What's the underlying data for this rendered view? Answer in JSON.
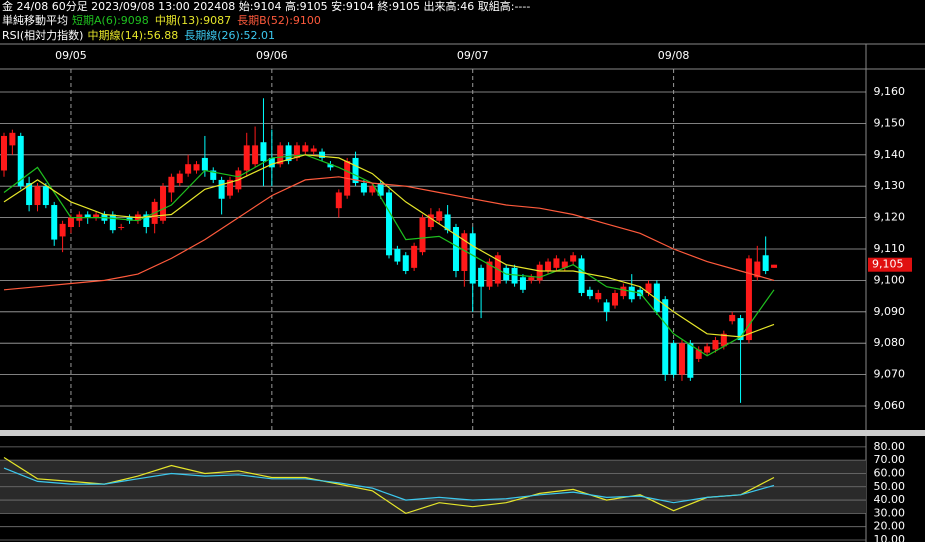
{
  "header": {
    "line1": "金 24/08 60分足 2023/09/08 13:00 202408 始:9104 高:9105 安:9104 終:9105 出来高:46 取組高:----"
  },
  "chart_data": [
    {
      "type": "candlestick",
      "title": "単純移動平均",
      "categories": [
        null,
        null,
        null,
        null,
        null,
        null,
        null,
        null,
        "09/05",
        null,
        null,
        null,
        null,
        null,
        null,
        null,
        null,
        null,
        null,
        null,
        null,
        null,
        null,
        null,
        null,
        null,
        null,
        null,
        null,
        null,
        null,
        null,
        "09/06",
        null,
        null,
        null,
        null,
        null,
        null,
        null,
        null,
        null,
        null,
        null,
        null,
        null,
        null,
        null,
        null,
        null,
        null,
        null,
        null,
        null,
        null,
        null,
        "09/07",
        null,
        null,
        null,
        null,
        null,
        null,
        null,
        null,
        null,
        null,
        null,
        null,
        null,
        null,
        null,
        null,
        null,
        null,
        null,
        null,
        null,
        null,
        null,
        "09/08",
        null,
        null,
        null,
        null,
        null,
        null,
        null,
        null,
        null,
        null,
        null,
        null
      ],
      "open": [
        9135,
        9143,
        9146,
        9131,
        9124,
        9130,
        9124,
        9114,
        9117,
        9119,
        9121,
        9120,
        9121,
        9121,
        9117,
        9120,
        9119,
        9121,
        9118,
        9119,
        9128,
        9131,
        9134,
        9135,
        9139,
        9135,
        9132,
        9127,
        9129,
        9135,
        9137,
        9144,
        9139,
        9137,
        9143,
        9139,
        9141,
        9141,
        9141,
        9137,
        9123,
        9127,
        9139,
        9131,
        9128,
        9131,
        9128,
        9110,
        9108,
        9104,
        9109,
        9117,
        9119,
        9121,
        9117,
        9103,
        9115,
        9104,
        9098,
        9099,
        9104,
        9104,
        9101,
        9100,
        9100,
        9103,
        9104,
        9104,
        9106,
        9107,
        9097,
        9094,
        9093,
        9092,
        9095,
        9098,
        9097,
        9096,
        9099,
        9094,
        9080,
        9070,
        9080,
        9075,
        9077,
        9078,
        9079,
        9087,
        9088,
        9081,
        9101,
        9108,
        9104
      ],
      "high": [
        9147,
        9148,
        9147,
        9133,
        9131,
        9131,
        9125,
        9119,
        9121,
        9122,
        9122,
        9122,
        9122,
        9122,
        9118,
        9121,
        9122,
        9122,
        9126,
        9131,
        9134,
        9135,
        9140,
        9138,
        9146,
        9136,
        9133,
        9133,
        9136,
        9147,
        9149,
        9158,
        9148,
        9144,
        9144,
        9144,
        9144,
        9143,
        9142,
        9138,
        9129,
        9139,
        9141,
        9132,
        9131,
        9132,
        9129,
        9111,
        9109,
        9112,
        9121,
        9123,
        9123,
        9124,
        9118,
        9116,
        9117,
        9105,
        9107,
        9109,
        9105,
        9105,
        9102,
        9102,
        9106,
        9107,
        9108,
        9107,
        9109,
        9108,
        9098,
        9097,
        9094,
        9097,
        9099,
        9102,
        9098,
        9100,
        9100,
        9095,
        9081,
        9081,
        9081,
        9079,
        9080,
        9082,
        9084,
        9090,
        9089,
        9108,
        9111,
        9114,
        9105
      ],
      "low": [
        9133,
        9140,
        9129,
        9122,
        9122,
        9123,
        9111,
        9109,
        9115,
        9117,
        9118,
        9119,
        9118,
        9115,
        9116,
        9118,
        9118,
        9115,
        9115,
        9118,
        9125,
        9130,
        9133,
        9134,
        9133,
        9131,
        9121,
        9126,
        9128,
        9133,
        9136,
        9130,
        9130,
        9136,
        9137,
        9138,
        9140,
        9140,
        9138,
        9135,
        9120,
        9126,
        9130,
        9127,
        9127,
        9126,
        9107,
        9105,
        9102,
        9103,
        9108,
        9116,
        9118,
        9115,
        9101,
        9098,
        9090,
        9088,
        9097,
        9098,
        9099,
        9098,
        9096,
        9099,
        9099,
        9102,
        9103,
        9103,
        9105,
        9095,
        9094,
        9093,
        9087,
        9091,
        9094,
        9093,
        9094,
        9095,
        9089,
        9068,
        9069,
        9068,
        9068,
        9074,
        9076,
        9077,
        9078,
        9086,
        9061,
        9080,
        9100,
        9102,
        9104
      ],
      "close": [
        9146,
        9147,
        9130,
        9124,
        9130,
        9124,
        9113,
        9118,
        9120,
        9121,
        9120,
        9121,
        9119,
        9116,
        9117,
        9119,
        9121,
        9117,
        9125,
        9130,
        9133,
        9134,
        9137,
        9137,
        9135,
        9132,
        9126,
        9132,
        9135,
        9143,
        9143,
        9138,
        9136,
        9143,
        9138,
        9143,
        9143,
        9142,
        9139,
        9136,
        9128,
        9138,
        9131,
        9128,
        9130,
        9127,
        9108,
        9106,
        9103,
        9111,
        9120,
        9121,
        9122,
        9116,
        9103,
        9115,
        9099,
        9098,
        9106,
        9108,
        9100,
        9099,
        9097,
        9101,
        9105,
        9106,
        9107,
        9106,
        9108,
        9096,
        9095,
        9096,
        9090,
        9096,
        9098,
        9094,
        9095,
        9099,
        9090,
        9070,
        9070,
        9080,
        9069,
        9078,
        9079,
        9081,
        9083,
        9089,
        9081,
        9107,
        9106,
        9103,
        9105
      ],
      "up_color": "#ff1a1a",
      "down_color": "#00ffff",
      "ylim": [
        9053,
        9167
      ],
      "yticks": [
        {
          "value": 9060,
          "label": "9,060"
        },
        {
          "value": 9070,
          "label": "9,070"
        },
        {
          "value": 9080,
          "label": "9,080"
        },
        {
          "value": 9090,
          "label": "9,090"
        },
        {
          "value": 9100,
          "label": "9,100"
        },
        {
          "value": 9110,
          "label": "9,110"
        },
        {
          "value": 9120,
          "label": "9,120"
        },
        {
          "value": 9130,
          "label": "9,130"
        },
        {
          "value": 9140,
          "label": "9,140"
        },
        {
          "value": 9150,
          "label": "9,150"
        },
        {
          "value": 9160,
          "label": "9,160"
        }
      ],
      "last_price": {
        "value": 9105,
        "label": "9,105"
      },
      "series": [
        {
          "name": "短期A(6):9098",
          "color": "#1fc01f",
          "x": [
            0,
            4,
            8,
            12,
            16,
            20,
            24,
            28,
            32,
            36,
            40,
            44,
            48,
            52,
            56,
            60,
            64,
            68,
            72,
            76,
            80,
            84,
            88,
            92
          ],
          "values": [
            9128,
            9136,
            9120,
            9120,
            9119,
            9124,
            9135,
            9133,
            9139,
            9140,
            9136,
            9131,
            9113,
            9114,
            9108,
            9102,
            9101,
            9105,
            9098,
            9096,
            9083,
            9076,
            9082,
            9097
          ]
        },
        {
          "name": "中期(13):9087",
          "color": "#e6e62a",
          "x": [
            0,
            4,
            8,
            12,
            16,
            20,
            24,
            28,
            32,
            36,
            40,
            44,
            48,
            52,
            56,
            60,
            64,
            68,
            72,
            76,
            80,
            84,
            88,
            92
          ],
          "values": [
            9125,
            9132,
            9125,
            9121,
            9120,
            9121,
            9129,
            9132,
            9137,
            9140,
            9139,
            9134,
            9125,
            9118,
            9111,
            9105,
            9103,
            9103,
            9101,
            9098,
            9090,
            9083,
            9082,
            9086
          ]
        },
        {
          "name": "長期B(52):9100",
          "color": "#ff5a3c",
          "x": [
            0,
            4,
            8,
            12,
            16,
            20,
            24,
            28,
            32,
            36,
            40,
            44,
            48,
            52,
            56,
            60,
            64,
            68,
            72,
            76,
            80,
            84,
            88,
            92
          ],
          "values": [
            9097,
            9098,
            9099,
            9100,
            9102,
            9107,
            9113,
            9120,
            9127,
            9132,
            9133,
            9131,
            9130,
            9128,
            9126,
            9124,
            9123,
            9121,
            9118,
            9115,
            9110,
            9106,
            9103,
            9100
          ]
        }
      ]
    },
    {
      "type": "line",
      "title": "RSI(相対力指数)",
      "ylim": [
        8.5,
        87.4
      ],
      "yticks": [
        {
          "value": 10,
          "label": "10.00"
        },
        {
          "value": 20,
          "label": "20.00"
        },
        {
          "value": 30,
          "label": "30.00"
        },
        {
          "value": 40,
          "label": "40.00"
        },
        {
          "value": 50,
          "label": "50.00"
        },
        {
          "value": 60,
          "label": "60.00"
        },
        {
          "value": 70,
          "label": "70.00"
        },
        {
          "value": 80,
          "label": "80.00"
        }
      ],
      "series": [
        {
          "name": "中期線(14):56.88",
          "color": "#e6e62a",
          "x": [
            0,
            4,
            8,
            12,
            16,
            20,
            24,
            28,
            32,
            36,
            40,
            44,
            48,
            52,
            56,
            60,
            64,
            68,
            72,
            76,
            80,
            84,
            88,
            92
          ],
          "values": [
            72,
            56,
            54,
            52,
            58,
            66,
            60,
            62,
            57,
            57,
            52,
            47,
            30,
            38,
            35,
            38,
            45,
            48,
            40,
            44,
            32,
            42,
            44,
            57
          ]
        },
        {
          "name": "長期線(26):52.01",
          "color": "#3cc8ee",
          "x": [
            0,
            4,
            8,
            12,
            16,
            20,
            24,
            28,
            32,
            36,
            40,
            44,
            48,
            52,
            56,
            60,
            64,
            68,
            72,
            76,
            80,
            84,
            88,
            92
          ],
          "values": [
            64,
            54,
            52,
            52,
            56,
            60,
            58,
            59,
            56,
            56,
            53,
            49,
            40,
            42,
            40,
            41,
            44,
            46,
            42,
            43,
            38,
            42,
            44,
            51
          ]
        }
      ]
    }
  ]
}
